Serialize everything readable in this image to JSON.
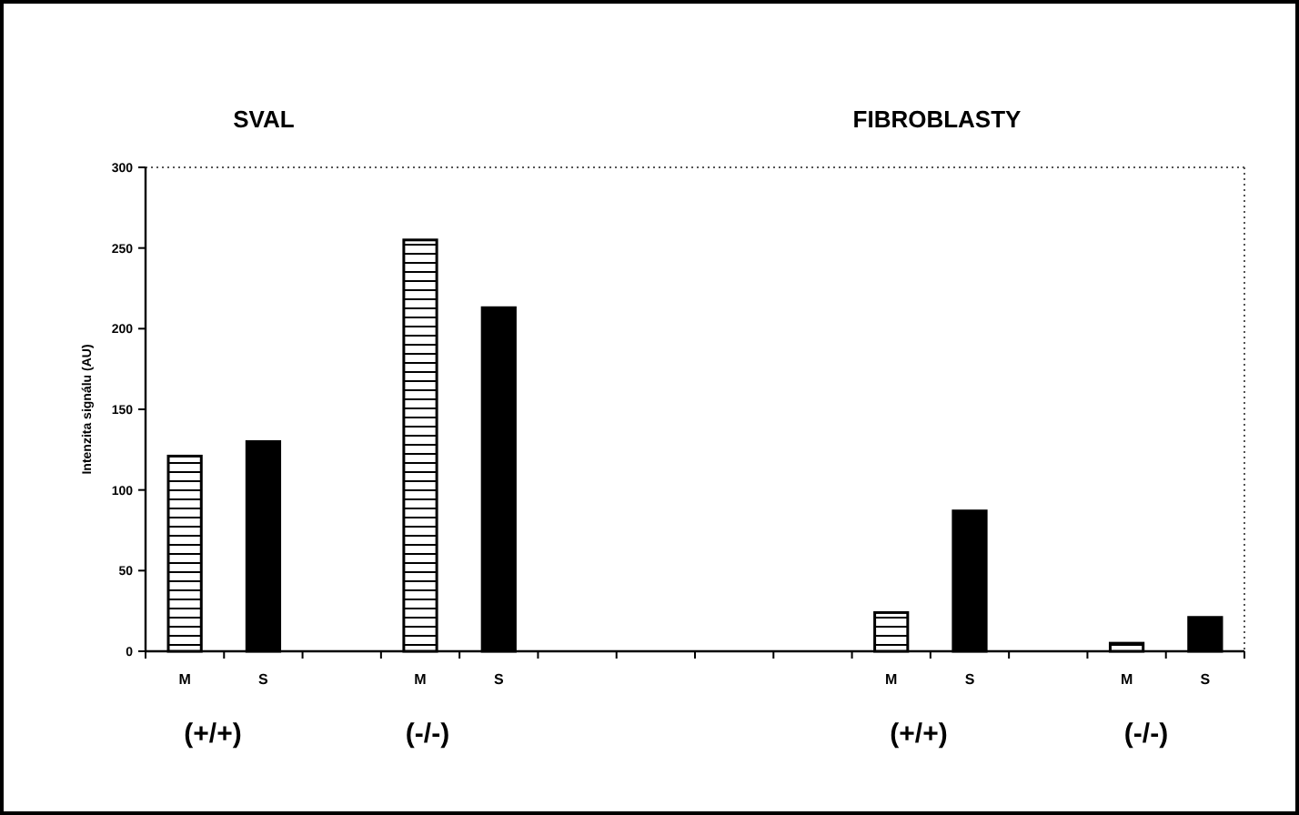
{
  "chart_data": {
    "type": "bar",
    "ylabel": "Intenzita signálu (AU)",
    "categories": [
      "M",
      "S",
      null,
      "M",
      "S",
      null,
      null,
      null,
      null,
      "M",
      "S",
      null,
      "M",
      "S"
    ],
    "series": [
      {
        "color": "#ffffff",
        "values": [
          121,
          null,
          null,
          255,
          null,
          null,
          null,
          null,
          null,
          24,
          null,
          null,
          5,
          null
        ]
      },
      {
        "color": "#000000",
        "values": [
          null,
          130,
          null,
          null,
          213,
          null,
          null,
          null,
          null,
          null,
          87,
          null,
          null,
          21
        ]
      }
    ],
    "ylim": [
      0,
      300
    ],
    "yticks": [
      0,
      50,
      100,
      150,
      200,
      250,
      300
    ],
    "annotations": [
      "SVAL",
      "FIBROBLASTY",
      "(+/+)",
      "(-/-)",
      "(+/+)",
      "(-/-)"
    ]
  }
}
